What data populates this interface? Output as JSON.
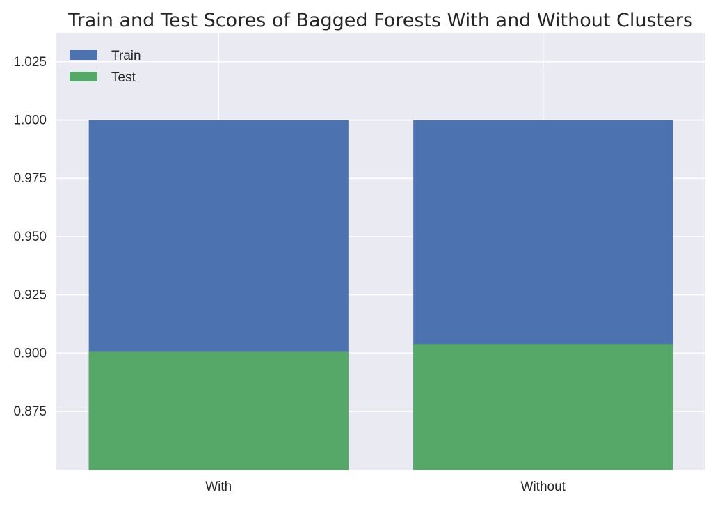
{
  "chart_data": {
    "type": "bar",
    "stacked_overlay": true,
    "title": "Train and Test Scores of Bagged Forests With and Without Clusters",
    "xlabel": "",
    "ylabel": "",
    "categories": [
      "With",
      "Without"
    ],
    "series": [
      {
        "name": "Train",
        "values": [
          1.0,
          1.0
        ],
        "color": "#4c72b0"
      },
      {
        "name": "Test",
        "values": [
          0.9006,
          0.9039
        ],
        "color": "#55a868"
      }
    ],
    "ylim": [
      0.8499,
      1.0375
    ],
    "yticks": [
      "0.875",
      "0.900",
      "0.925",
      "0.950",
      "0.975",
      "1.000",
      "1.025"
    ],
    "ytick_values": [
      0.875,
      0.9,
      0.925,
      0.95,
      0.975,
      1.0,
      1.025
    ],
    "grid": true,
    "legend": "top-left",
    "background": "#eaeaf2",
    "gridcolor": "#ffffff"
  }
}
